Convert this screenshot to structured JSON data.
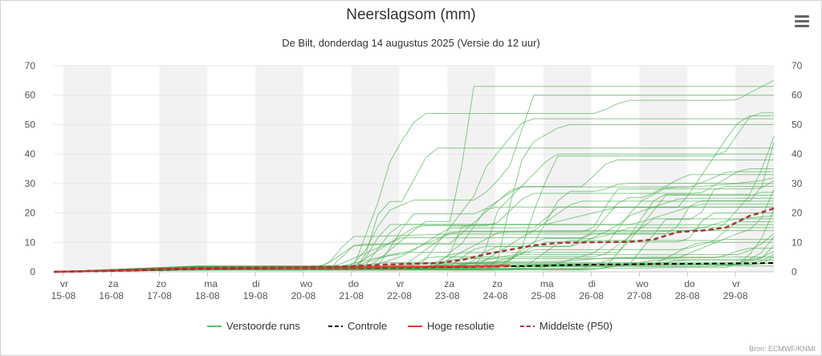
{
  "title": "Neerslagsom (mm)",
  "subtitle": "De Bilt, donderdag 14 augustus 2025 (Versie do 12 uur)",
  "credits": "Bron: ECMWF/KNMI",
  "menu_icon": "hamburger-menu-icon",
  "chart_data": {
    "type": "line",
    "title": "Neerslagsom (mm)",
    "subtitle": "De Bilt, donderdag 14 augustus 2025 (Versie do 12 uur)",
    "x_range_days": [
      0,
      15
    ],
    "x_ticks": [
      {
        "day": "vr",
        "date": "15-08"
      },
      {
        "day": "za",
        "date": "16-08"
      },
      {
        "day": "zo",
        "date": "17-08"
      },
      {
        "day": "ma",
        "date": "18-08"
      },
      {
        "day": "di",
        "date": "19-08"
      },
      {
        "day": "wo",
        "date": "20-08"
      },
      {
        "day": "do",
        "date": "21-08"
      },
      {
        "day": "vr",
        "date": "22-08"
      },
      {
        "day": "za",
        "date": "23-08"
      },
      {
        "day": "zo",
        "date": "24-08"
      },
      {
        "day": "ma",
        "date": "25-08"
      },
      {
        "day": "di",
        "date": "26-08"
      },
      {
        "day": "wo",
        "date": "27-08"
      },
      {
        "day": "do",
        "date": "28-08"
      },
      {
        "day": "vr",
        "date": "29-08"
      }
    ],
    "ylim": [
      0,
      70
    ],
    "y_ticks": [
      0,
      10,
      20,
      30,
      40,
      50,
      60,
      70
    ],
    "grid": true,
    "legend_position": "bottom",
    "legend": [
      {
        "name": "Verstoorde runs",
        "color": "#66bb6a",
        "dash": "solid"
      },
      {
        "name": "Controle",
        "color": "#000000",
        "dash": "dashed"
      },
      {
        "name": "Hoge resolutie",
        "color": "#e53935",
        "dash": "solid"
      },
      {
        "name": "Middelste (P50)",
        "color": "#a33838",
        "dash": "dashed"
      }
    ],
    "ensemble_final_values": [
      65,
      63,
      60,
      54,
      53,
      52,
      50,
      46,
      44,
      42,
      40,
      38,
      35,
      34,
      33,
      32,
      31,
      30,
      29,
      28,
      27,
      26,
      25,
      24,
      23,
      22,
      22,
      21,
      20,
      19,
      18,
      17,
      16,
      15,
      14,
      13,
      12,
      11,
      10,
      9,
      8,
      7,
      6,
      5,
      5,
      4,
      3,
      2
    ],
    "series": [
      {
        "name": "Controle",
        "x": [
          0,
          1,
          2,
          3,
          5,
          7,
          9,
          10,
          11,
          12,
          13,
          14,
          15
        ],
        "values": [
          0,
          0.2,
          0.6,
          1.0,
          1.2,
          1.4,
          1.8,
          2.0,
          2.4,
          2.6,
          2.7,
          2.8,
          3.0
        ]
      },
      {
        "name": "Hoge resolutie",
        "x": [
          0,
          1,
          2,
          3,
          5,
          7,
          8,
          9,
          9.5
        ],
        "values": [
          0,
          0.3,
          0.8,
          1.2,
          1.3,
          1.6,
          1.8,
          2.0,
          2.1
        ]
      },
      {
        "name": "Middelste (P50)",
        "x": [
          0,
          1,
          2,
          3,
          5,
          6,
          7,
          8,
          8.5,
          9,
          9.5,
          10,
          10.5,
          11,
          12,
          12.5,
          13,
          13.5,
          14,
          14.5,
          15
        ],
        "values": [
          0,
          0.3,
          0.8,
          1.3,
          1.5,
          1.8,
          2.5,
          3.0,
          4.0,
          6.0,
          7.5,
          9.0,
          9.8,
          10.0,
          10.2,
          11.0,
          13.5,
          14.0,
          15.0,
          19.0,
          21.5
        ]
      }
    ]
  }
}
